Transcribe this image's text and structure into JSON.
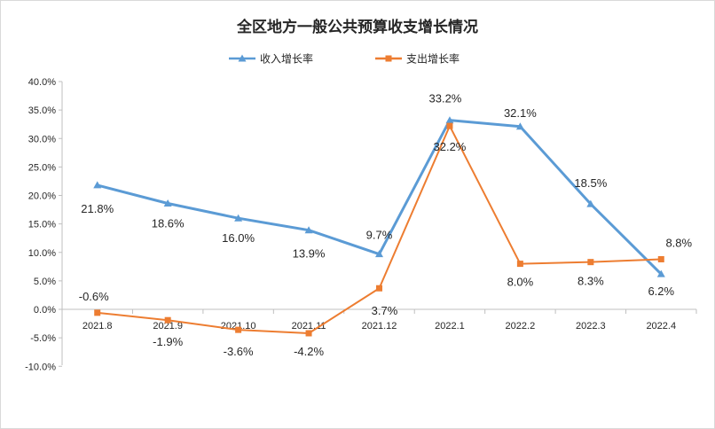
{
  "chart_data": {
    "type": "line",
    "title": "全区地方一般公共预算收支增长情况",
    "categories": [
      "2021.8",
      "2021.9",
      "2021.10",
      "2021.11",
      "2021.12",
      "2022.1",
      "2022.2",
      "2022.3",
      "2022.4"
    ],
    "series": [
      {
        "name": "收入增长率",
        "color": "#5b9bd5",
        "marker": "triangle",
        "values": [
          21.8,
          18.6,
          16.0,
          13.9,
          9.7,
          33.2,
          32.1,
          18.5,
          6.2
        ],
        "labels": [
          "21.8%",
          "18.6%",
          "16.0%",
          "13.9%",
          "9.7%",
          "33.2%",
          "32.1%",
          "18.5%",
          "6.2%"
        ]
      },
      {
        "name": "支出增长率",
        "color": "#ed7d31",
        "marker": "square",
        "values": [
          -0.6,
          -1.9,
          -3.6,
          -4.2,
          3.7,
          32.2,
          8.0,
          8.3,
          8.8
        ],
        "labels": [
          "-0.6%",
          "-1.9%",
          "-3.6%",
          "-4.2%",
          "3.7%",
          "32.2%",
          "8.0%",
          "8.3%",
          "8.8%"
        ]
      }
    ],
    "ylim": [
      -10,
      40
    ],
    "ytick_step": 5,
    "ytick_labels": [
      "-10.0%",
      "-5.0%",
      "0.0%",
      "5.0%",
      "10.0%",
      "15.0%",
      "20.0%",
      "25.0%",
      "30.0%",
      "35.0%",
      "40.0%"
    ],
    "grid": false,
    "legend_position": "top-center"
  }
}
